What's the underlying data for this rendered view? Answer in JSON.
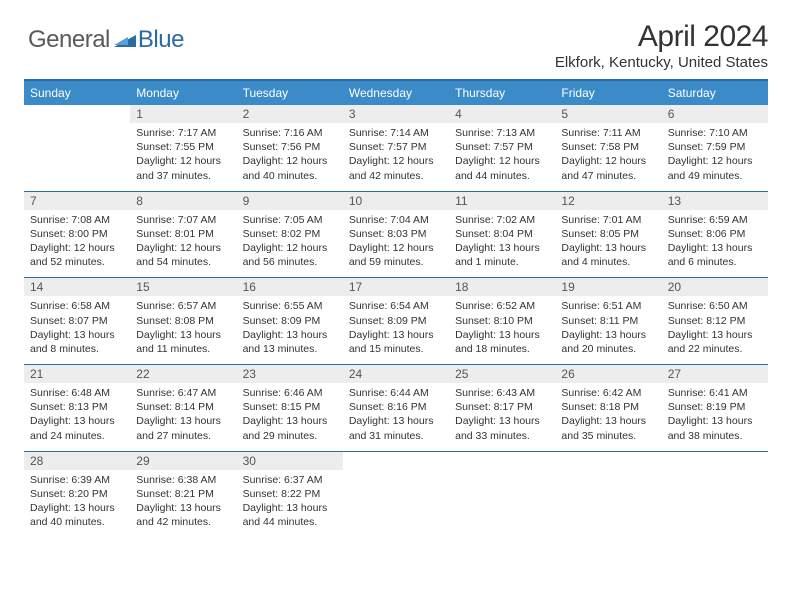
{
  "logo": {
    "general": "General",
    "blue": "Blue"
  },
  "title": "April 2024",
  "location": "Elkfork, Kentucky, United States",
  "headers": [
    "Sunday",
    "Monday",
    "Tuesday",
    "Wednesday",
    "Thursday",
    "Friday",
    "Saturday"
  ],
  "colors": {
    "header_bg": "#3b8bc9",
    "header_border_top": "#2b6aa8",
    "row_border": "#2b6aa8",
    "daynum_bg": "#ededed",
    "text": "#333333",
    "logo_gray": "#5a5a5a",
    "logo_blue": "#2b6aa8",
    "background": "#ffffff"
  },
  "weeks": [
    [
      {
        "num": "",
        "sunrise": "",
        "sunset": "",
        "daylight": ""
      },
      {
        "num": "1",
        "sunrise": "Sunrise: 7:17 AM",
        "sunset": "Sunset: 7:55 PM",
        "daylight": "Daylight: 12 hours and 37 minutes."
      },
      {
        "num": "2",
        "sunrise": "Sunrise: 7:16 AM",
        "sunset": "Sunset: 7:56 PM",
        "daylight": "Daylight: 12 hours and 40 minutes."
      },
      {
        "num": "3",
        "sunrise": "Sunrise: 7:14 AM",
        "sunset": "Sunset: 7:57 PM",
        "daylight": "Daylight: 12 hours and 42 minutes."
      },
      {
        "num": "4",
        "sunrise": "Sunrise: 7:13 AM",
        "sunset": "Sunset: 7:57 PM",
        "daylight": "Daylight: 12 hours and 44 minutes."
      },
      {
        "num": "5",
        "sunrise": "Sunrise: 7:11 AM",
        "sunset": "Sunset: 7:58 PM",
        "daylight": "Daylight: 12 hours and 47 minutes."
      },
      {
        "num": "6",
        "sunrise": "Sunrise: 7:10 AM",
        "sunset": "Sunset: 7:59 PM",
        "daylight": "Daylight: 12 hours and 49 minutes."
      }
    ],
    [
      {
        "num": "7",
        "sunrise": "Sunrise: 7:08 AM",
        "sunset": "Sunset: 8:00 PM",
        "daylight": "Daylight: 12 hours and 52 minutes."
      },
      {
        "num": "8",
        "sunrise": "Sunrise: 7:07 AM",
        "sunset": "Sunset: 8:01 PM",
        "daylight": "Daylight: 12 hours and 54 minutes."
      },
      {
        "num": "9",
        "sunrise": "Sunrise: 7:05 AM",
        "sunset": "Sunset: 8:02 PM",
        "daylight": "Daylight: 12 hours and 56 minutes."
      },
      {
        "num": "10",
        "sunrise": "Sunrise: 7:04 AM",
        "sunset": "Sunset: 8:03 PM",
        "daylight": "Daylight: 12 hours and 59 minutes."
      },
      {
        "num": "11",
        "sunrise": "Sunrise: 7:02 AM",
        "sunset": "Sunset: 8:04 PM",
        "daylight": "Daylight: 13 hours and 1 minute."
      },
      {
        "num": "12",
        "sunrise": "Sunrise: 7:01 AM",
        "sunset": "Sunset: 8:05 PM",
        "daylight": "Daylight: 13 hours and 4 minutes."
      },
      {
        "num": "13",
        "sunrise": "Sunrise: 6:59 AM",
        "sunset": "Sunset: 8:06 PM",
        "daylight": "Daylight: 13 hours and 6 minutes."
      }
    ],
    [
      {
        "num": "14",
        "sunrise": "Sunrise: 6:58 AM",
        "sunset": "Sunset: 8:07 PM",
        "daylight": "Daylight: 13 hours and 8 minutes."
      },
      {
        "num": "15",
        "sunrise": "Sunrise: 6:57 AM",
        "sunset": "Sunset: 8:08 PM",
        "daylight": "Daylight: 13 hours and 11 minutes."
      },
      {
        "num": "16",
        "sunrise": "Sunrise: 6:55 AM",
        "sunset": "Sunset: 8:09 PM",
        "daylight": "Daylight: 13 hours and 13 minutes."
      },
      {
        "num": "17",
        "sunrise": "Sunrise: 6:54 AM",
        "sunset": "Sunset: 8:09 PM",
        "daylight": "Daylight: 13 hours and 15 minutes."
      },
      {
        "num": "18",
        "sunrise": "Sunrise: 6:52 AM",
        "sunset": "Sunset: 8:10 PM",
        "daylight": "Daylight: 13 hours and 18 minutes."
      },
      {
        "num": "19",
        "sunrise": "Sunrise: 6:51 AM",
        "sunset": "Sunset: 8:11 PM",
        "daylight": "Daylight: 13 hours and 20 minutes."
      },
      {
        "num": "20",
        "sunrise": "Sunrise: 6:50 AM",
        "sunset": "Sunset: 8:12 PM",
        "daylight": "Daylight: 13 hours and 22 minutes."
      }
    ],
    [
      {
        "num": "21",
        "sunrise": "Sunrise: 6:48 AM",
        "sunset": "Sunset: 8:13 PM",
        "daylight": "Daylight: 13 hours and 24 minutes."
      },
      {
        "num": "22",
        "sunrise": "Sunrise: 6:47 AM",
        "sunset": "Sunset: 8:14 PM",
        "daylight": "Daylight: 13 hours and 27 minutes."
      },
      {
        "num": "23",
        "sunrise": "Sunrise: 6:46 AM",
        "sunset": "Sunset: 8:15 PM",
        "daylight": "Daylight: 13 hours and 29 minutes."
      },
      {
        "num": "24",
        "sunrise": "Sunrise: 6:44 AM",
        "sunset": "Sunset: 8:16 PM",
        "daylight": "Daylight: 13 hours and 31 minutes."
      },
      {
        "num": "25",
        "sunrise": "Sunrise: 6:43 AM",
        "sunset": "Sunset: 8:17 PM",
        "daylight": "Daylight: 13 hours and 33 minutes."
      },
      {
        "num": "26",
        "sunrise": "Sunrise: 6:42 AM",
        "sunset": "Sunset: 8:18 PM",
        "daylight": "Daylight: 13 hours and 35 minutes."
      },
      {
        "num": "27",
        "sunrise": "Sunrise: 6:41 AM",
        "sunset": "Sunset: 8:19 PM",
        "daylight": "Daylight: 13 hours and 38 minutes."
      }
    ],
    [
      {
        "num": "28",
        "sunrise": "Sunrise: 6:39 AM",
        "sunset": "Sunset: 8:20 PM",
        "daylight": "Daylight: 13 hours and 40 minutes."
      },
      {
        "num": "29",
        "sunrise": "Sunrise: 6:38 AM",
        "sunset": "Sunset: 8:21 PM",
        "daylight": "Daylight: 13 hours and 42 minutes."
      },
      {
        "num": "30",
        "sunrise": "Sunrise: 6:37 AM",
        "sunset": "Sunset: 8:22 PM",
        "daylight": "Daylight: 13 hours and 44 minutes."
      },
      {
        "num": "",
        "sunrise": "",
        "sunset": "",
        "daylight": ""
      },
      {
        "num": "",
        "sunrise": "",
        "sunset": "",
        "daylight": ""
      },
      {
        "num": "",
        "sunrise": "",
        "sunset": "",
        "daylight": ""
      },
      {
        "num": "",
        "sunrise": "",
        "sunset": "",
        "daylight": ""
      }
    ]
  ]
}
